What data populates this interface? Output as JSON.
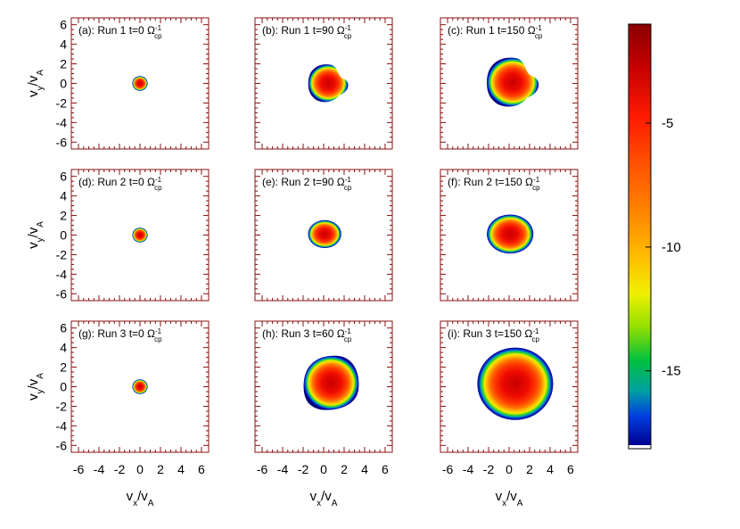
{
  "chart_data": {
    "type": "heatmap",
    "layout": "3x3 grid of velocity distribution maps with shared colorbar",
    "xlabel": "v_x/v_A",
    "ylabel": "v_y/v_A",
    "xlim": [
      -6.7,
      6.7
    ],
    "ylim": [
      -6.7,
      6.7
    ],
    "x_ticks": [
      "-6",
      "-4",
      "-2",
      "0",
      "2",
      "4",
      "6"
    ],
    "y_ticks": [
      "6",
      "4",
      "2",
      "0",
      "-2",
      "-4",
      "-6"
    ],
    "panels": [
      {
        "label": "(a): Run 1 t=0",
        "unit": "Ω",
        "sup": "-1",
        "sub": "cp",
        "center": [
          0,
          0
        ],
        "radius": 0.75,
        "shape": "circle"
      },
      {
        "label": "(b): Run 1 t=90",
        "unit": "Ω",
        "sup": "-1",
        "sub": "cp",
        "center": [
          0.4,
          0
        ],
        "radius": 2.0,
        "shape": "kidney"
      },
      {
        "label": "(c): Run 1 t=150",
        "unit": "Ω",
        "sup": "-1",
        "sub": "cp",
        "center": [
          0.3,
          0.1
        ],
        "radius": 2.6,
        "shape": "kidney"
      },
      {
        "label": "(d): Run 2 t=0",
        "unit": "Ω",
        "sup": "-1",
        "sub": "cp",
        "center": [
          0,
          0
        ],
        "radius": 0.75,
        "shape": "circle"
      },
      {
        "label": "(e): Run 2 t=90",
        "unit": "Ω",
        "sup": "-1",
        "sub": "cp",
        "center": [
          0.1,
          0.1
        ],
        "radius": 1.5,
        "shape": "oval"
      },
      {
        "label": "(f): Run 2 t=150",
        "unit": "Ω",
        "sup": "-1",
        "sub": "cp",
        "center": [
          0.1,
          0.1
        ],
        "radius": 2.1,
        "shape": "oval"
      },
      {
        "label": "(g): Run 3 t=0",
        "unit": "Ω",
        "sup": "-1",
        "sub": "cp",
        "center": [
          0,
          0
        ],
        "radius": 0.75,
        "shape": "circle"
      },
      {
        "label": "(h): Run 3 t=60",
        "unit": "Ω",
        "sup": "-1",
        "sub": "cp",
        "center": [
          0.8,
          0.4
        ],
        "radius": 2.9,
        "shape": "blob"
      },
      {
        "label": "(i): Run 3 t=150",
        "unit": "Ω",
        "sup": "-1",
        "sub": "cp",
        "center": [
          0.6,
          0.3
        ],
        "radius": 3.7,
        "shape": "circle"
      }
    ],
    "colorbar": {
      "range": [
        -18,
        -1
      ],
      "ticks": [
        "-5",
        "-10",
        "-15"
      ],
      "colormap": "rainbow (dark blue → green → yellow → orange → red → dark red)"
    }
  }
}
